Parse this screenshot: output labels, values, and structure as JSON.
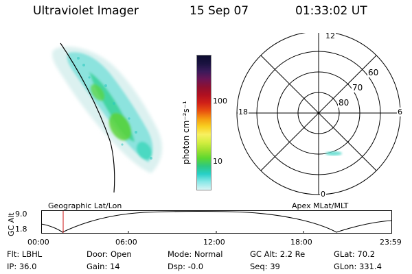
{
  "header": {
    "instrument": "Ultraviolet Imager",
    "date": "15 Sep 07",
    "time": "01:33:02 UT"
  },
  "colorbar": {
    "label": "photon cm⁻²s⁻¹",
    "ticks": [
      "100",
      "10"
    ],
    "colors": [
      "#0b0b2e",
      "#1a1240",
      "#3a1a5a",
      "#6a1555",
      "#8e1030",
      "#b01020",
      "#d02018",
      "#e85010",
      "#f59a10",
      "#f8d020",
      "#f8f060",
      "#d4ee40",
      "#9fe030",
      "#5dd830",
      "#2ec880",
      "#28d0c8",
      "#8ae8e8",
      "#d8f4f4"
    ]
  },
  "left_panel": {
    "label": "Geographic Lat/Lon"
  },
  "polar_plot": {
    "label": "Apex MLat/MLT",
    "lat_labels": [
      "60",
      "70",
      "80"
    ],
    "mlt_labels": {
      "top": "12",
      "left": "18",
      "right": "6",
      "bottom": "0"
    }
  },
  "altitude_plot": {
    "ylabel": "GC Alt",
    "y_ticks": [
      "9.0",
      "1.8"
    ],
    "x_ticks": [
      "00:00",
      "06:00",
      "12:00",
      "18:00",
      "23:59"
    ]
  },
  "footer": {
    "row1": [
      {
        "key": "Flt:",
        "value": "LBHL"
      },
      {
        "key": "Door:",
        "value": "Open"
      },
      {
        "key": "Mode:",
        "value": "Normal"
      },
      {
        "key": "GC Alt:",
        "value": "2.2 Re"
      },
      {
        "key": "GLat:",
        "value": "70.2"
      }
    ],
    "row2": [
      {
        "key": "IP:",
        "value": "36.0"
      },
      {
        "key": "Gain:",
        "value": "14"
      },
      {
        "key": "Dsp:",
        "value": "-0.0"
      },
      {
        "key": "Seq:",
        "value": "39"
      },
      {
        "key": "GLon:",
        "value": "331.4"
      }
    ]
  }
}
